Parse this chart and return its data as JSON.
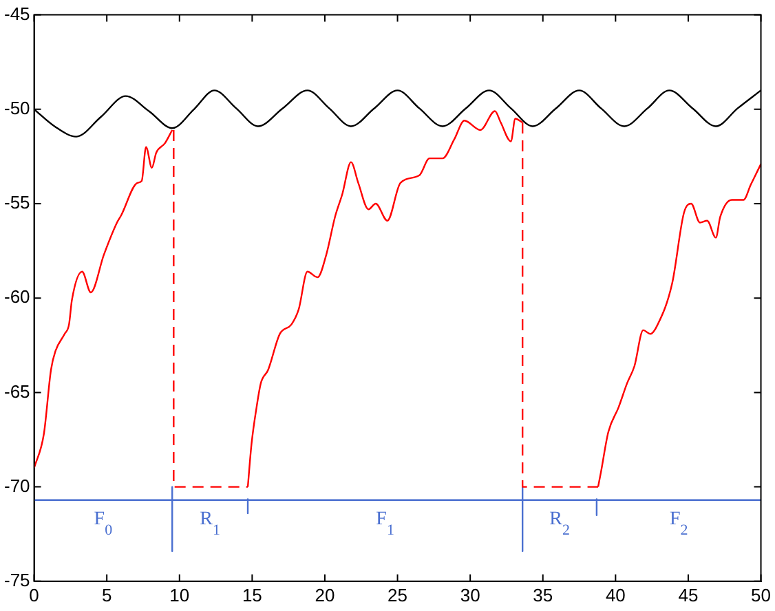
{
  "chart_data": {
    "type": "line",
    "xlim": [
      0,
      50
    ],
    "ylim": [
      -75,
      -45
    ],
    "xticks": [
      0,
      5,
      10,
      15,
      20,
      25,
      30,
      35,
      40,
      45,
      50
    ],
    "yticks": [
      -75,
      -70,
      -65,
      -60,
      -55,
      -50,
      -45
    ],
    "grid": false,
    "legend": false,
    "marker": "none",
    "series": [
      {
        "color": "#000000",
        "x": [
          0,
          1.4,
          2.9,
          4.6,
          6.3,
          7.9,
          9.5,
          11,
          12.4,
          13.9,
          15.4,
          17.1,
          18.8,
          20.3,
          21.8,
          23.4,
          25.0,
          26.5,
          28.1,
          29.7,
          31.3,
          32.8,
          34.3,
          35.9,
          37.5,
          39.0,
          40.6,
          42.2,
          43.7,
          45.3,
          46.9,
          48.4,
          50
        ],
        "values": [
          -50,
          -50.9,
          -51.45,
          -50.4,
          -49.3,
          -50.1,
          -51.0,
          -50.0,
          -49.0,
          -49.95,
          -50.9,
          -49.95,
          -49.0,
          -49.95,
          -50.9,
          -49.95,
          -49.0,
          -49.95,
          -50.9,
          -49.95,
          -49.0,
          -49.95,
          -50.9,
          -49.95,
          -49.0,
          -49.95,
          -50.9,
          -49.95,
          -49.0,
          -49.95,
          -50.9,
          -49.95,
          -49.0
        ]
      },
      {
        "color": "#ff0000",
        "x": [
          0,
          0.67,
          1.16,
          1.47,
          2.1,
          2.4,
          2.6,
          3.3,
          3.9,
          4.8,
          5.7,
          6.0,
          7.1,
          7.4,
          7.7,
          8.1,
          8.4,
          9.0,
          9.5
        ],
        "values": [
          -69,
          -67.2,
          -63.8,
          -62.8,
          -61.9,
          -61.4,
          -60.1,
          -58.6,
          -59.7,
          -57.7,
          -56.0,
          -55.6,
          -53.9,
          -53.8,
          -52.0,
          -53.1,
          -52.3,
          -51.8,
          -51.1
        ]
      },
      {
        "color": "#ff0000",
        "x": [
          14.7,
          14.96,
          15.3,
          15.6,
          16.1,
          16.9,
          17.7,
          18.2,
          18.8,
          19.5,
          20.1,
          20.7,
          21.2,
          21.8,
          22.3,
          23.0,
          23.5,
          24.3,
          25.2,
          26.5,
          27.2,
          28.1,
          28.9,
          29.6,
          30.7,
          31.7,
          32.1,
          32.8,
          33.1,
          33.6
        ],
        "values": [
          -70.0,
          -67.7,
          -65.8,
          -64.5,
          -63.8,
          -61.9,
          -61.4,
          -60.6,
          -58.6,
          -58.9,
          -57.7,
          -55.7,
          -54.5,
          -52.8,
          -53.9,
          -55.3,
          -55.0,
          -55.9,
          -53.9,
          -53.5,
          -52.6,
          -52.6,
          -51.6,
          -50.6,
          -51.1,
          -50.1,
          -50.7,
          -51.7,
          -50.5,
          -50.7
        ]
      },
      {
        "color": "#ff0000",
        "x": [
          38.8,
          39.0,
          39.5,
          40.2,
          40.8,
          41.3,
          41.9,
          42.4,
          42.9,
          43.9,
          44.7,
          45.2,
          45.8,
          46.3,
          46.9,
          47.2,
          48.0,
          48.8,
          49.3,
          50.0
        ],
        "values": [
          -70.0,
          -69.2,
          -67.1,
          -65.8,
          -64.5,
          -63.6,
          -61.7,
          -61.9,
          -61.4,
          -59.2,
          -55.5,
          -55.0,
          -56.0,
          -55.9,
          -56.8,
          -55.7,
          -54.8,
          -54.8,
          -54.0,
          -52.9
        ]
      },
      {
        "color": "#ff0000",
        "line_style": "dashed",
        "x": [
          9.6,
          9.6,
          14.7
        ],
        "values": [
          -51.1,
          -70,
          -70
        ]
      },
      {
        "color": "#ff0000",
        "line_style": "dashed",
        "x": [
          33.6,
          33.6,
          38.8
        ],
        "values": [
          -50.7,
          -70,
          -70
        ]
      },
      {
        "name": "F$_{0}$",
        "color": "#4a6fd0",
        "x": [
          0,
          9.5
        ],
        "values": [
          -70.7,
          -70.7
        ]
      },
      {
        "name": "R$_{1}$",
        "color": "#4a6fd0",
        "x": [
          9.5,
          14.7
        ],
        "values": [
          -70.7,
          -70.7
        ]
      },
      {
        "name": "F$_{1}$",
        "color": "#4a6fd0",
        "x": [
          14.7,
          33.6
        ],
        "values": [
          -70.7,
          -70.7
        ]
      },
      {
        "name": "R$_{2}$",
        "color": "#4a6fd0",
        "x": [
          33.6,
          38.7
        ],
        "values": [
          -70.7,
          -70.7
        ]
      },
      {
        "name": "F$_{2}$",
        "color": "#4a6fd0",
        "x": [
          38.7,
          50
        ],
        "values": [
          -70.7,
          -70.7
        ]
      },
      {
        "color": "#4a6fd0",
        "x": [
          9.5,
          9.5
        ],
        "values": [
          -70,
          -73.4
        ]
      },
      {
        "color": "#4a6fd0",
        "x": [
          14.7,
          14.7
        ],
        "values": [
          -70.65,
          -71.4
        ]
      },
      {
        "color": "#4a6fd0",
        "x": [
          33.6,
          33.6
        ],
        "values": [
          -70,
          -73.4
        ]
      },
      {
        "color": "#4a6fd0",
        "x": [
          38.7,
          38.7
        ],
        "values": [
          -70.65,
          -71.5
        ]
      }
    ]
  }
}
